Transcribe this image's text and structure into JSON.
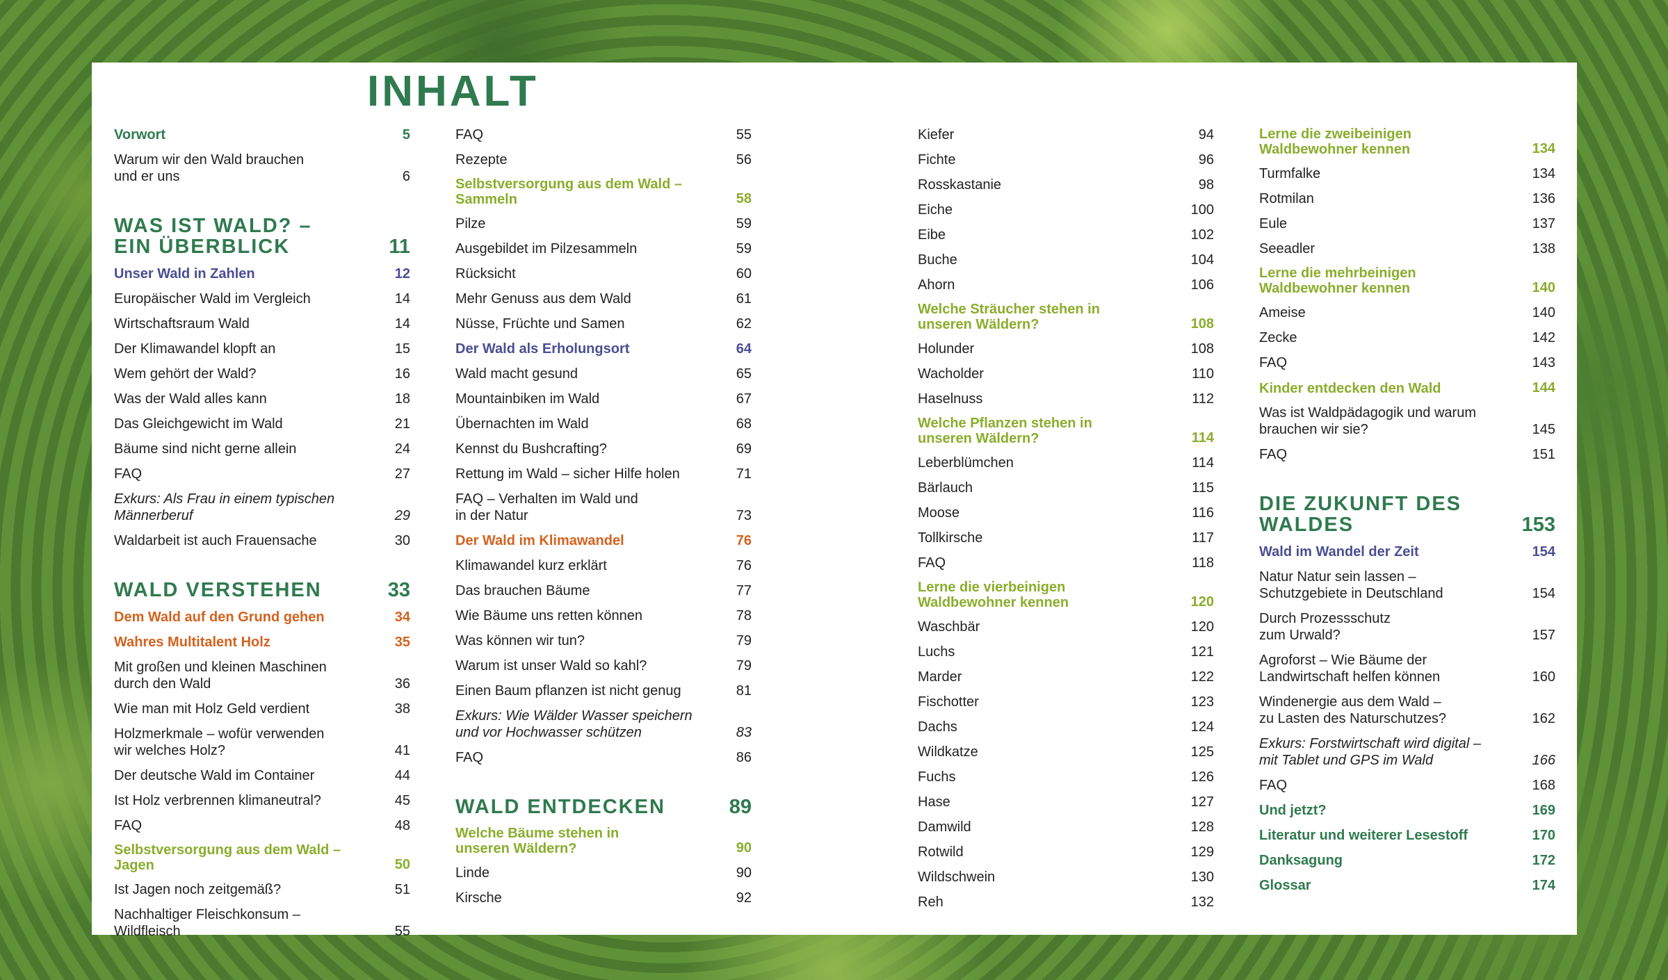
{
  "title": "INHALT",
  "colors": {
    "section": "#2f7a4f",
    "olive": "#8aad2c",
    "blue": "#4a4e93",
    "orange": "#d4621e"
  },
  "columns": [
    [
      {
        "k": "g",
        "t": "Vorwort",
        "p": "5"
      },
      {
        "k": "n",
        "t": "Warum wir den Wald brauchen\nund er uns",
        "p": "6"
      },
      {
        "k": "s",
        "t": "WAS IST WALD? –\nEIN ÜBERBLICK",
        "p": "11"
      },
      {
        "k": "b",
        "t": "Unser Wald in Zahlen",
        "p": "12"
      },
      {
        "k": "n",
        "t": "Europäischer Wald im Vergleich",
        "p": "14"
      },
      {
        "k": "n",
        "t": "Wirtschaftsraum Wald",
        "p": "14"
      },
      {
        "k": "n",
        "t": "Der Klimawandel klopft an",
        "p": "15"
      },
      {
        "k": "n",
        "t": "Wem gehört der Wald?",
        "p": "16"
      },
      {
        "k": "n",
        "t": "Was der Wald alles kann",
        "p": "18"
      },
      {
        "k": "n",
        "t": "Das Gleichgewicht im Wald",
        "p": "21"
      },
      {
        "k": "n",
        "t": "Bäume sind nicht gerne allein",
        "p": "24"
      },
      {
        "k": "n",
        "t": "FAQ",
        "p": "27"
      },
      {
        "k": "i",
        "t": "Exkurs: Als Frau in einem typischen\nMännerberuf",
        "p": "29"
      },
      {
        "k": "n",
        "t": "Waldarbeit ist auch Frauensache",
        "p": "30"
      },
      {
        "k": "s",
        "t": "WALD VERSTEHEN",
        "p": "33"
      },
      {
        "k": "r",
        "t": "Dem Wald auf den Grund gehen",
        "p": "34"
      },
      {
        "k": "r",
        "t": "Wahres Multitalent Holz",
        "p": "35"
      },
      {
        "k": "n",
        "t": "Mit großen und kleinen Maschinen\ndurch den Wald",
        "p": "36"
      },
      {
        "k": "n",
        "t": "Wie man mit Holz Geld verdient",
        "p": "38"
      },
      {
        "k": "n",
        "t": "Holzmerkmale – wofür verwenden\nwir welches Holz?",
        "p": "41"
      },
      {
        "k": "n",
        "t": "Der deutsche Wald im Container",
        "p": "44"
      },
      {
        "k": "n",
        "t": "Ist Holz verbrennen klimaneutral?",
        "p": "45"
      },
      {
        "k": "n",
        "t": "FAQ",
        "p": "48"
      },
      {
        "k": "o",
        "t": "Selbstversorgung aus dem Wald –\nJagen",
        "p": "50"
      },
      {
        "k": "n",
        "t": "Ist Jagen noch zeitgemäß?",
        "p": "51"
      },
      {
        "k": "n",
        "t": "Nachhaltiger Fleischkonsum –\nWildfleisch",
        "p": "55"
      }
    ],
    [
      {
        "k": "n",
        "t": "FAQ",
        "p": "55"
      },
      {
        "k": "n",
        "t": "Rezepte",
        "p": "56"
      },
      {
        "k": "o",
        "t": "Selbstversorgung aus dem Wald –\nSammeln",
        "p": "58"
      },
      {
        "k": "n",
        "t": "Pilze",
        "p": "59"
      },
      {
        "k": "n",
        "t": "Ausgebildet im Pilzesammeln",
        "p": "59"
      },
      {
        "k": "n",
        "t": "Rücksicht",
        "p": "60"
      },
      {
        "k": "n",
        "t": "Mehr Genuss aus dem Wald",
        "p": "61"
      },
      {
        "k": "n",
        "t": "Nüsse, Früchte und Samen",
        "p": "62"
      },
      {
        "k": "b",
        "t": "Der Wald als Erholungsort",
        "p": "64"
      },
      {
        "k": "n",
        "t": "Wald macht gesund",
        "p": "65"
      },
      {
        "k": "n",
        "t": "Mountainbiken im Wald",
        "p": "67"
      },
      {
        "k": "n",
        "t": "Übernachten im Wald",
        "p": "68"
      },
      {
        "k": "n",
        "t": "Kennst du Bushcrafting?",
        "p": "69"
      },
      {
        "k": "n",
        "t": "Rettung im Wald – sicher Hilfe holen",
        "p": "71"
      },
      {
        "k": "n",
        "t": "FAQ – Verhalten im Wald und\nin der Natur",
        "p": "73"
      },
      {
        "k": "r",
        "t": "Der Wald im Klimawandel",
        "p": "76"
      },
      {
        "k": "n",
        "t": "Klimawandel kurz erklärt",
        "p": "76"
      },
      {
        "k": "n",
        "t": "Das brauchen Bäume",
        "p": "77"
      },
      {
        "k": "n",
        "t": "Wie Bäume uns retten können",
        "p": "78"
      },
      {
        "k": "n",
        "t": "Was können wir tun?",
        "p": "79"
      },
      {
        "k": "n",
        "t": "Warum ist unser Wald so kahl?",
        "p": "79"
      },
      {
        "k": "n",
        "t": "Einen Baum pflanzen ist nicht genug",
        "p": "81"
      },
      {
        "k": "i",
        "t": "Exkurs: Wie Wälder Wasser speichern\nund vor Hochwasser schützen",
        "p": "83"
      },
      {
        "k": "n",
        "t": "FAQ",
        "p": "86"
      },
      {
        "k": "s",
        "t": "WALD ENTDECKEN",
        "p": "89"
      },
      {
        "k": "o",
        "t": "Welche Bäume stehen in\nunseren Wäldern?",
        "p": "90"
      },
      {
        "k": "n",
        "t": "Linde",
        "p": "90"
      },
      {
        "k": "n",
        "t": "Kirsche",
        "p": "92"
      }
    ],
    [
      {
        "k": "n",
        "t": "Kiefer",
        "p": "94"
      },
      {
        "k": "n",
        "t": "Fichte",
        "p": "96"
      },
      {
        "k": "n",
        "t": "Rosskastanie",
        "p": "98"
      },
      {
        "k": "n",
        "t": "Eiche",
        "p": "100"
      },
      {
        "k": "n",
        "t": "Eibe",
        "p": "102"
      },
      {
        "k": "n",
        "t": "Buche",
        "p": "104"
      },
      {
        "k": "n",
        "t": "Ahorn",
        "p": "106"
      },
      {
        "k": "o",
        "t": "Welche Sträucher stehen in\nunseren Wäldern?",
        "p": "108"
      },
      {
        "k": "n",
        "t": "Holunder",
        "p": "108"
      },
      {
        "k": "n",
        "t": "Wacholder",
        "p": "110"
      },
      {
        "k": "n",
        "t": "Haselnuss",
        "p": "112"
      },
      {
        "k": "o",
        "t": "Welche Pflanzen stehen in\nunseren Wäldern?",
        "p": "114"
      },
      {
        "k": "n",
        "t": "Leberblümchen",
        "p": "114"
      },
      {
        "k": "n",
        "t": "Bärlauch",
        "p": "115"
      },
      {
        "k": "n",
        "t": "Moose",
        "p": "116"
      },
      {
        "k": "n",
        "t": "Tollkirsche",
        "p": "117"
      },
      {
        "k": "n",
        "t": "FAQ",
        "p": "118"
      },
      {
        "k": "o",
        "t": "Lerne die vierbeinigen\nWaldbewohner kennen",
        "p": "120"
      },
      {
        "k": "n",
        "t": "Waschbär",
        "p": "120"
      },
      {
        "k": "n",
        "t": "Luchs",
        "p": "121"
      },
      {
        "k": "n",
        "t": "Marder",
        "p": "122"
      },
      {
        "k": "n",
        "t": "Fischotter",
        "p": "123"
      },
      {
        "k": "n",
        "t": "Dachs",
        "p": "124"
      },
      {
        "k": "n",
        "t": "Wildkatze",
        "p": "125"
      },
      {
        "k": "n",
        "t": "Fuchs",
        "p": "126"
      },
      {
        "k": "n",
        "t": "Hase",
        "p": "127"
      },
      {
        "k": "n",
        "t": "Damwild",
        "p": "128"
      },
      {
        "k": "n",
        "t": "Rotwild",
        "p": "129"
      },
      {
        "k": "n",
        "t": "Wildschwein",
        "p": "130"
      },
      {
        "k": "n",
        "t": "Reh",
        "p": "132"
      }
    ],
    [
      {
        "k": "o",
        "t": "Lerne die zweibeinigen\nWaldbewohner kennen",
        "p": "134"
      },
      {
        "k": "n",
        "t": "Turmfalke",
        "p": "134"
      },
      {
        "k": "n",
        "t": "Rotmilan",
        "p": "136"
      },
      {
        "k": "n",
        "t": "Eule",
        "p": "137"
      },
      {
        "k": "n",
        "t": "Seeadler",
        "p": "138"
      },
      {
        "k": "o",
        "t": "Lerne die mehrbeinigen\nWaldbewohner kennen",
        "p": "140"
      },
      {
        "k": "n",
        "t": "Ameise",
        "p": "140"
      },
      {
        "k": "n",
        "t": "Zecke",
        "p": "142"
      },
      {
        "k": "n",
        "t": "FAQ",
        "p": "143"
      },
      {
        "k": "o",
        "t": "Kinder entdecken den Wald",
        "p": "144"
      },
      {
        "k": "n",
        "t": "Was ist Waldpädagogik und warum\nbrauchen wir sie?",
        "p": "145"
      },
      {
        "k": "n",
        "t": "FAQ",
        "p": "151"
      },
      {
        "k": "s",
        "t": "DIE ZUKUNFT DES\nWALDES",
        "p": "153"
      },
      {
        "k": "b",
        "t": "Wald im Wandel der Zeit",
        "p": "154"
      },
      {
        "k": "n",
        "t": "Natur Natur sein lassen –\nSchutzgebiete in Deutschland",
        "p": "154"
      },
      {
        "k": "n",
        "t": "Durch Prozessschutz\nzum Urwald?",
        "p": "157"
      },
      {
        "k": "n",
        "t": "Agroforst – Wie Bäume der\nLandwirtschaft helfen können",
        "p": "160"
      },
      {
        "k": "n",
        "t": "Windenergie aus dem Wald –\nzu Lasten des Naturschutzes?",
        "p": "162"
      },
      {
        "k": "i",
        "t": "Exkurs: Forstwirtschaft wird digital –\nmit Tablet und GPS im Wald",
        "p": "166"
      },
      {
        "k": "n",
        "t": "FAQ",
        "p": "168"
      },
      {
        "k": "g",
        "t": "Und jetzt?",
        "p": "169"
      },
      {
        "k": "g",
        "t": "Literatur und weiterer Lesestoff",
        "p": "170"
      },
      {
        "k": "g",
        "t": "Danksagung",
        "p": "172"
      },
      {
        "k": "g",
        "t": "Glossar",
        "p": "174"
      }
    ]
  ]
}
